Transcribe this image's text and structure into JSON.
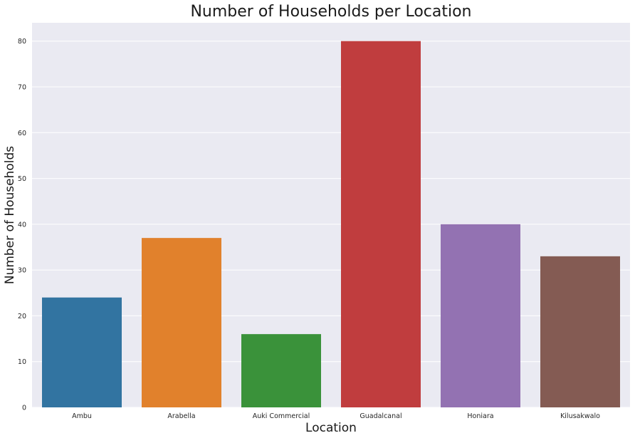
{
  "chart_data": {
    "type": "bar",
    "title": "Number of Households per Location",
    "xlabel": "Location",
    "ylabel": "Number of Households",
    "categories": [
      "Ambu",
      "Arabella",
      "Auki Commercial",
      "Guadalcanal",
      "Honiara",
      "Kilusakwalo"
    ],
    "values": [
      24,
      37,
      16,
      80,
      40,
      33
    ],
    "colors": [
      "#3274a1",
      "#e1812c",
      "#3a923a",
      "#c03d3e",
      "#9372b2",
      "#845b53"
    ],
    "ylim": [
      0,
      84
    ],
    "yticks": [
      0,
      10,
      20,
      30,
      40,
      50,
      60,
      70,
      80
    ],
    "grid": true,
    "grid_color": "#ffffff",
    "plot_background": "#eaeaf2"
  }
}
